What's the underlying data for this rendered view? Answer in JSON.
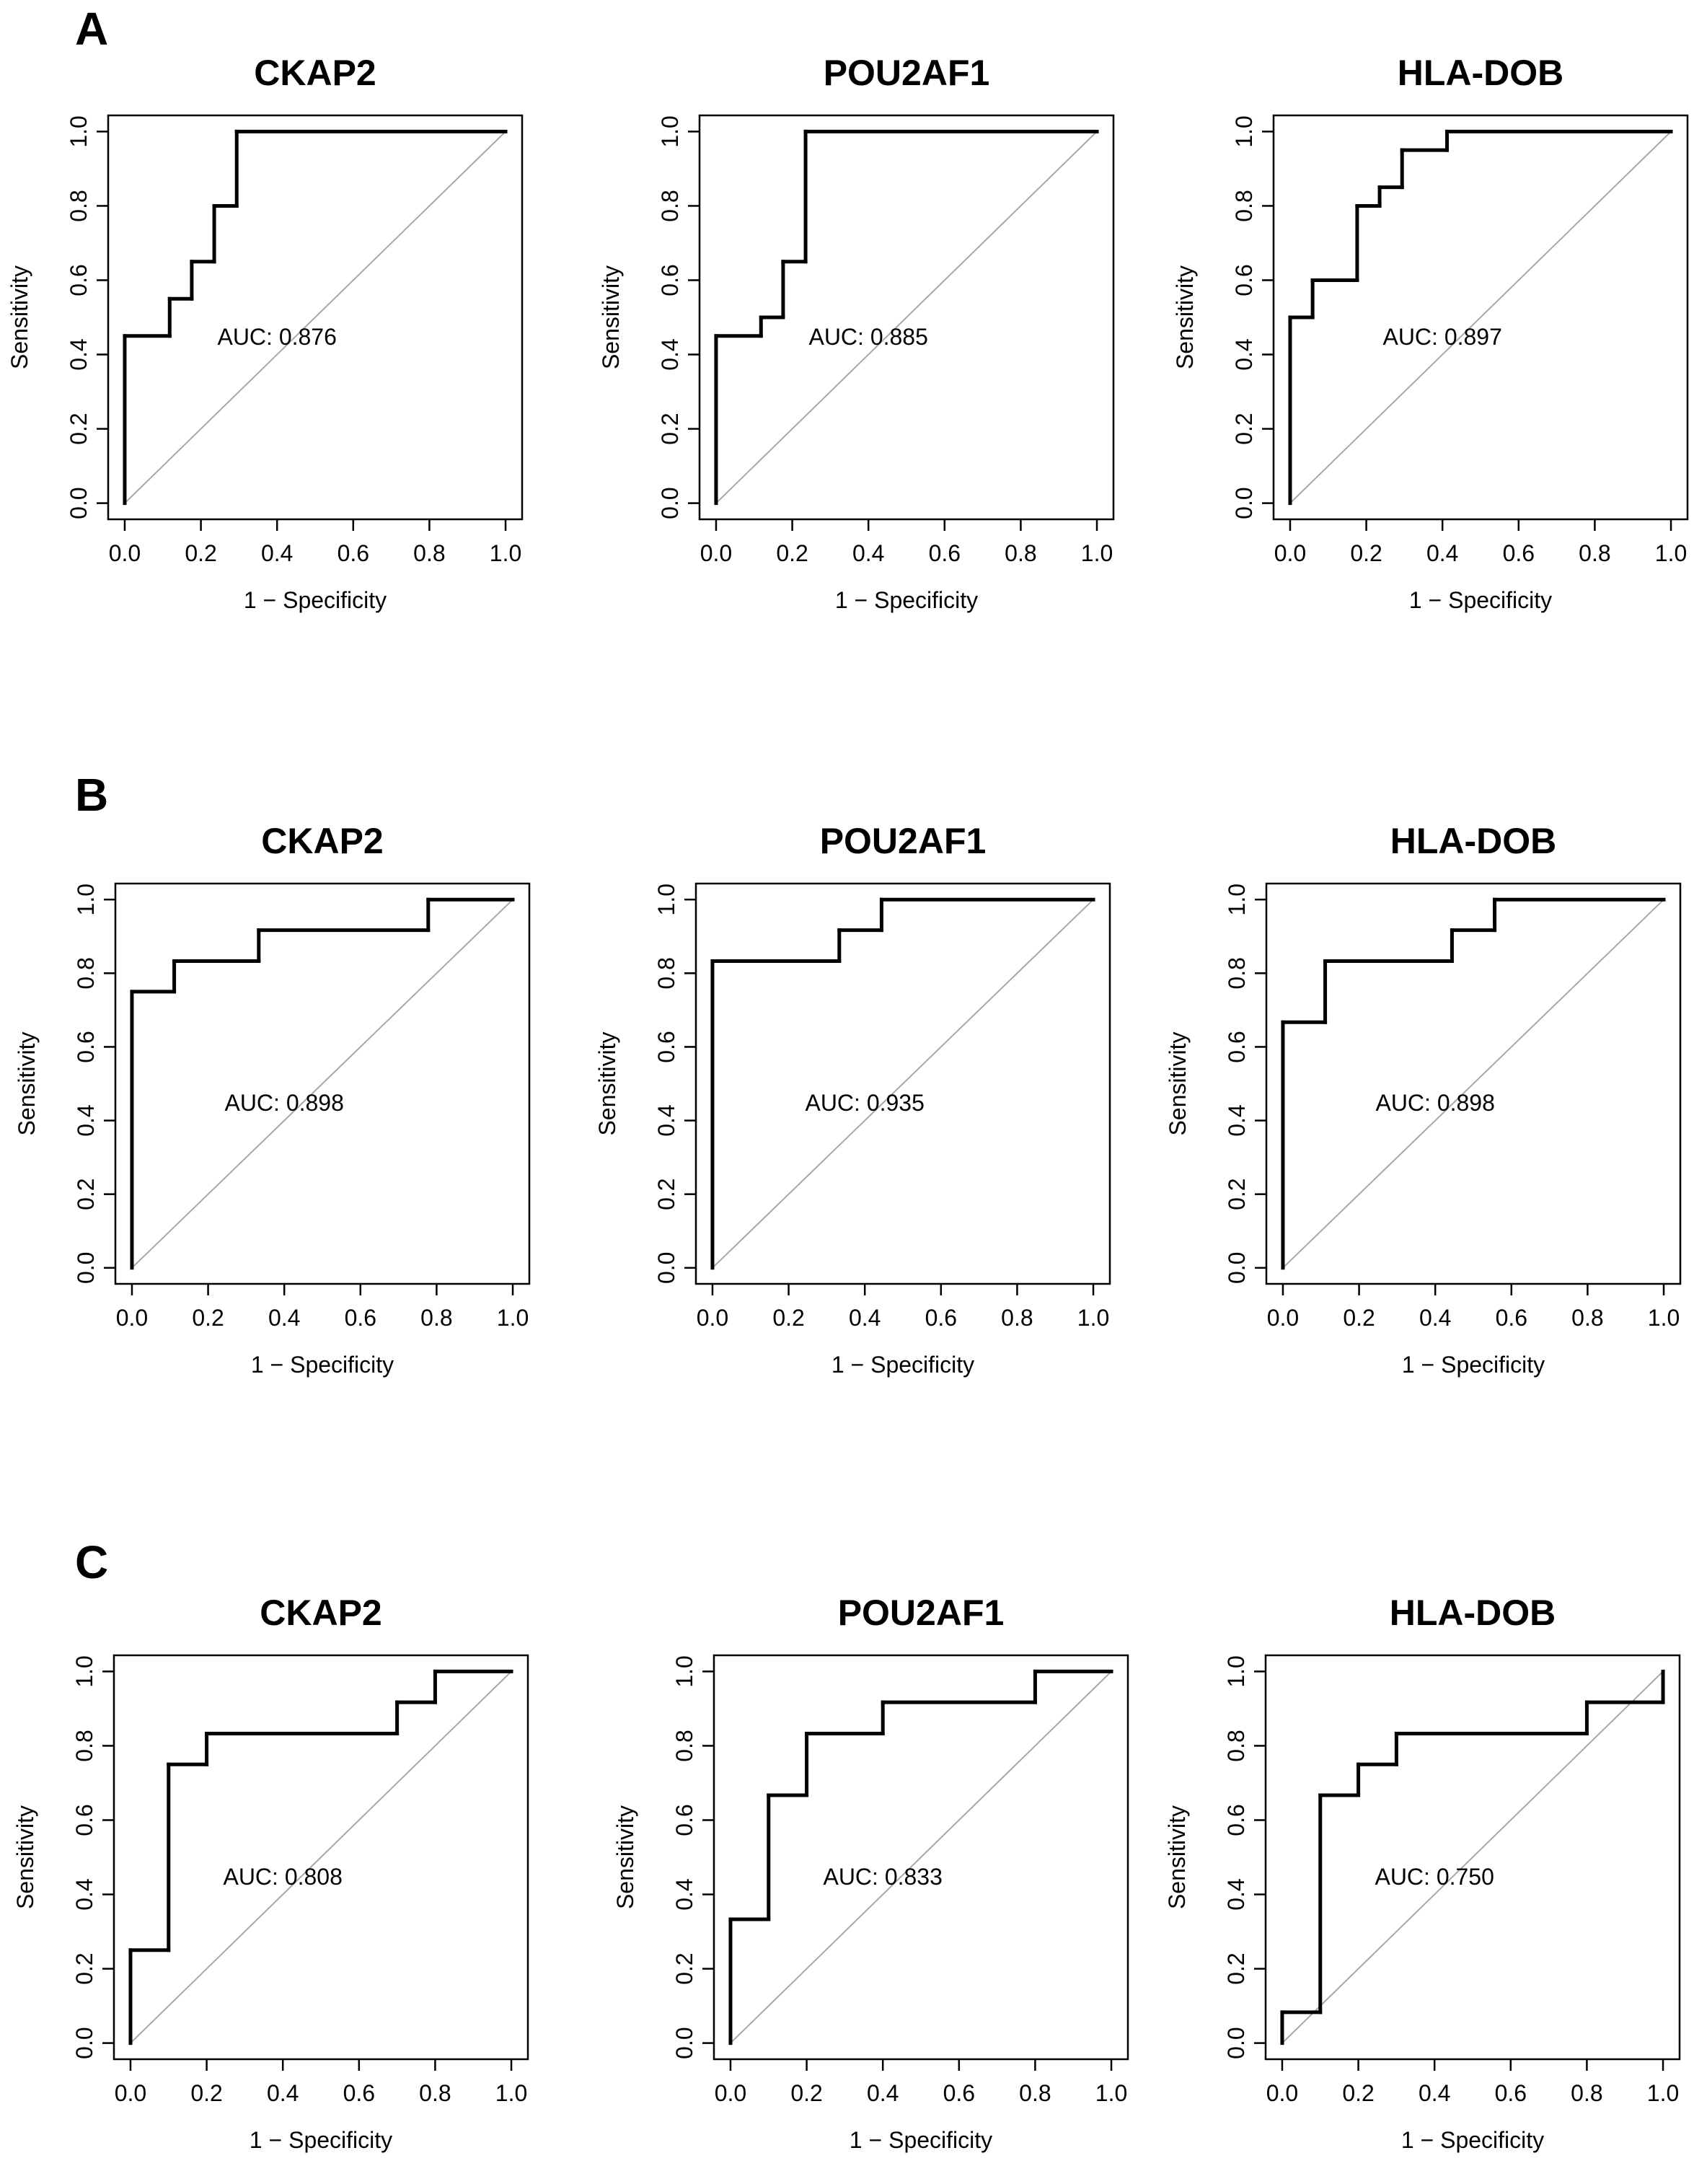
{
  "figure": {
    "panels": [
      {
        "label": "A"
      },
      {
        "label": "B"
      },
      {
        "label": "C"
      }
    ]
  },
  "chart_data": [
    {
      "type": "line",
      "panel": "A",
      "title": "CKAP2",
      "xlabel": "1 − Specificity",
      "ylabel": "Sensitivity",
      "xlim": [
        0,
        1
      ],
      "ylim": [
        0,
        1
      ],
      "ticks": [
        "0.0",
        "0.2",
        "0.4",
        "0.6",
        "0.8",
        "1.0"
      ],
      "diagonal": true,
      "auc_text": "AUC: 0.876",
      "x": [
        0,
        0,
        0.118,
        0.118,
        0.176,
        0.176,
        0.235,
        0.235,
        0.294,
        0.294,
        1.0
      ],
      "y": [
        0,
        0.45,
        0.45,
        0.55,
        0.55,
        0.65,
        0.65,
        0.8,
        0.8,
        1.0,
        1.0
      ]
    },
    {
      "type": "line",
      "panel": "A",
      "title": "POU2AF1",
      "xlabel": "1 − Specificity",
      "ylabel": "Sensitivity",
      "xlim": [
        0,
        1
      ],
      "ylim": [
        0,
        1
      ],
      "ticks": [
        "0.0",
        "0.2",
        "0.4",
        "0.6",
        "0.8",
        "1.0"
      ],
      "diagonal": true,
      "auc_text": "AUC: 0.885",
      "x": [
        0,
        0,
        0.118,
        0.118,
        0.176,
        0.176,
        0.235,
        0.235,
        1.0
      ],
      "y": [
        0,
        0.45,
        0.45,
        0.5,
        0.5,
        0.65,
        0.65,
        1.0,
        1.0
      ]
    },
    {
      "type": "line",
      "panel": "A",
      "title": "HLA-DOB",
      "xlabel": "1 − Specificity",
      "ylabel": "Sensitivity",
      "xlim": [
        0,
        1
      ],
      "ylim": [
        0,
        1
      ],
      "ticks": [
        "0.0",
        "0.2",
        "0.4",
        "0.6",
        "0.8",
        "1.0"
      ],
      "diagonal": true,
      "auc_text": "AUC: 0.897",
      "x": [
        0,
        0,
        0.059,
        0.059,
        0.176,
        0.176,
        0.235,
        0.235,
        0.294,
        0.294,
        0.412,
        0.412,
        1.0
      ],
      "y": [
        0,
        0.5,
        0.5,
        0.6,
        0.6,
        0.8,
        0.8,
        0.85,
        0.85,
        0.95,
        0.95,
        1.0,
        1.0
      ]
    },
    {
      "type": "line",
      "panel": "B",
      "title": "CKAP2",
      "xlabel": "1 − Specificity",
      "ylabel": "Sensitivity",
      "xlim": [
        0,
        1
      ],
      "ylim": [
        0,
        1
      ],
      "ticks": [
        "0.0",
        "0.2",
        "0.4",
        "0.6",
        "0.8",
        "1.0"
      ],
      "diagonal": true,
      "auc_text": "AUC: 0.898",
      "x": [
        0,
        0,
        0.111,
        0.111,
        0.333,
        0.333,
        0.778,
        0.778,
        1.0
      ],
      "y": [
        0,
        0.75,
        0.75,
        0.833,
        0.833,
        0.917,
        0.917,
        1.0,
        1.0
      ]
    },
    {
      "type": "line",
      "panel": "B",
      "title": "POU2AF1",
      "xlabel": "1 − Specificity",
      "ylabel": "Sensitivity",
      "xlim": [
        0,
        1
      ],
      "ylim": [
        0,
        1
      ],
      "ticks": [
        "0.0",
        "0.2",
        "0.4",
        "0.6",
        "0.8",
        "1.0"
      ],
      "diagonal": true,
      "auc_text": "AUC: 0.935",
      "x": [
        0,
        0,
        0.333,
        0.333,
        0.444,
        0.444,
        1.0
      ],
      "y": [
        0,
        0.833,
        0.833,
        0.917,
        0.917,
        1.0,
        1.0
      ]
    },
    {
      "type": "line",
      "panel": "B",
      "title": "HLA-DOB",
      "xlabel": "1 − Specificity",
      "ylabel": "Sensitivity",
      "xlim": [
        0,
        1
      ],
      "ylim": [
        0,
        1
      ],
      "ticks": [
        "0.0",
        "0.2",
        "0.4",
        "0.6",
        "0.8",
        "1.0"
      ],
      "diagonal": true,
      "auc_text": "AUC: 0.898",
      "x": [
        0,
        0,
        0.111,
        0.111,
        0.444,
        0.444,
        0.556,
        0.556,
        1.0
      ],
      "y": [
        0,
        0.667,
        0.667,
        0.833,
        0.833,
        0.917,
        0.917,
        1.0,
        1.0
      ]
    },
    {
      "type": "line",
      "panel": "C",
      "title": "CKAP2",
      "xlabel": "1 − Specificity",
      "ylabel": "Sensitivity",
      "xlim": [
        0,
        1
      ],
      "ylim": [
        0,
        1
      ],
      "ticks": [
        "0.0",
        "0.2",
        "0.4",
        "0.6",
        "0.8",
        "1.0"
      ],
      "diagonal": true,
      "auc_text": "AUC: 0.808",
      "x": [
        0,
        0,
        0.1,
        0.1,
        0.2,
        0.2,
        0.7,
        0.7,
        0.8,
        0.8,
        1.0
      ],
      "y": [
        0,
        0.25,
        0.25,
        0.75,
        0.75,
        0.833,
        0.833,
        0.917,
        0.917,
        1.0,
        1.0
      ]
    },
    {
      "type": "line",
      "panel": "C",
      "title": "POU2AF1",
      "xlabel": "1 − Specificity",
      "ylabel": "Sensitivity",
      "xlim": [
        0,
        1
      ],
      "ylim": [
        0,
        1
      ],
      "ticks": [
        "0.0",
        "0.2",
        "0.4",
        "0.6",
        "0.8",
        "1.0"
      ],
      "diagonal": true,
      "auc_text": "AUC: 0.833",
      "x": [
        0,
        0,
        0.1,
        0.1,
        0.2,
        0.2,
        0.4,
        0.4,
        0.8,
        0.8,
        1.0
      ],
      "y": [
        0,
        0.333,
        0.333,
        0.667,
        0.667,
        0.833,
        0.833,
        0.917,
        0.917,
        1.0,
        1.0
      ]
    },
    {
      "type": "line",
      "panel": "C",
      "title": "HLA-DOB",
      "xlabel": "1 − Specificity",
      "ylabel": "Sensitivity",
      "xlim": [
        0,
        1
      ],
      "ylim": [
        0,
        1
      ],
      "ticks": [
        "0.0",
        "0.2",
        "0.4",
        "0.6",
        "0.8",
        "1.0"
      ],
      "diagonal": true,
      "auc_text": "AUC: 0.750",
      "x": [
        0,
        0,
        0.1,
        0.1,
        0.2,
        0.2,
        0.3,
        0.3,
        0.8,
        0.8,
        1.0,
        1.0
      ],
      "y": [
        0,
        0.083,
        0.083,
        0.667,
        0.667,
        0.75,
        0.75,
        0.833,
        0.833,
        0.917,
        0.917,
        1.0
      ]
    }
  ]
}
